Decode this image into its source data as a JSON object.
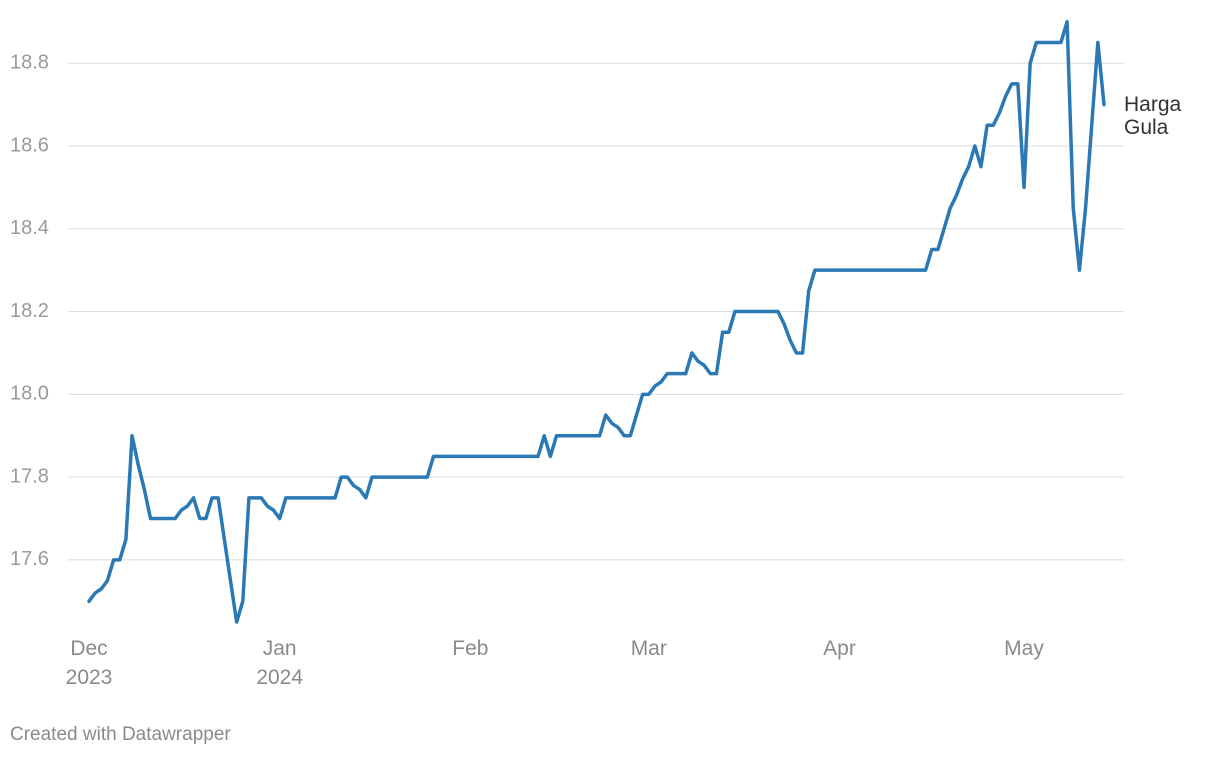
{
  "chart_data": {
    "type": "line",
    "categories": [
      "Dec\n2023",
      null,
      null,
      null,
      null,
      null,
      null,
      null,
      null,
      null,
      null,
      null,
      null,
      null,
      null,
      null,
      null,
      null,
      null,
      null,
      null,
      null,
      null,
      null,
      null,
      null,
      null,
      null,
      null,
      null,
      null,
      "Jan\n2024",
      null,
      null,
      null,
      null,
      null,
      null,
      null,
      null,
      null,
      null,
      null,
      null,
      null,
      null,
      null,
      null,
      null,
      null,
      null,
      null,
      null,
      null,
      null,
      null,
      null,
      null,
      null,
      null,
      null,
      null,
      "Feb",
      null,
      null,
      null,
      null,
      null,
      null,
      null,
      null,
      null,
      null,
      null,
      null,
      null,
      null,
      null,
      null,
      null,
      null,
      null,
      null,
      null,
      null,
      null,
      null,
      null,
      null,
      null,
      null,
      "Mar",
      null,
      null,
      null,
      null,
      null,
      null,
      null,
      null,
      null,
      null,
      null,
      null,
      null,
      null,
      null,
      null,
      null,
      null,
      null,
      null,
      null,
      null,
      null,
      null,
      null,
      null,
      null,
      null,
      null,
      null,
      "Apr",
      null,
      null,
      null,
      null,
      null,
      null,
      null,
      null,
      null,
      null,
      null,
      null,
      null,
      null,
      null,
      null,
      null,
      null,
      null,
      null,
      null,
      null,
      null,
      null,
      null,
      null,
      null,
      null,
      null,
      "May",
      null,
      null,
      null,
      null,
      null,
      null,
      null,
      null,
      null,
      null,
      null,
      null,
      null
    ],
    "series": [
      {
        "name": "Harga\nGula",
        "color": "#2a78b4",
        "values": [
          17.5,
          17.52,
          17.53,
          17.55,
          17.6,
          17.6,
          17.65,
          17.9,
          17.83,
          17.77,
          17.7,
          17.7,
          17.7,
          17.7,
          17.7,
          17.72,
          17.73,
          17.75,
          17.7,
          17.7,
          17.75,
          17.75,
          17.65,
          17.55,
          17.45,
          17.5,
          17.75,
          17.75,
          17.75,
          17.73,
          17.72,
          17.7,
          17.75,
          17.75,
          17.75,
          17.75,
          17.75,
          17.75,
          17.75,
          17.75,
          17.75,
          17.8,
          17.8,
          17.78,
          17.77,
          17.75,
          17.8,
          17.8,
          17.8,
          17.8,
          17.8,
          17.8,
          17.8,
          17.8,
          17.8,
          17.8,
          17.85,
          17.85,
          17.85,
          17.85,
          17.85,
          17.85,
          17.85,
          17.85,
          17.85,
          17.85,
          17.85,
          17.85,
          17.85,
          17.85,
          17.85,
          17.85,
          17.85,
          17.85,
          17.9,
          17.85,
          17.9,
          17.9,
          17.9,
          17.9,
          17.9,
          17.9,
          17.9,
          17.9,
          17.95,
          17.93,
          17.92,
          17.9,
          17.9,
          17.95,
          18.0,
          18.0,
          18.02,
          18.03,
          18.05,
          18.05,
          18.05,
          18.05,
          18.1,
          18.08,
          18.07,
          18.05,
          18.05,
          18.15,
          18.15,
          18.2,
          18.2,
          18.2,
          18.2,
          18.2,
          18.2,
          18.2,
          18.2,
          18.17,
          18.13,
          18.1,
          18.1,
          18.25,
          18.3,
          18.3,
          18.3,
          18.3,
          18.3,
          18.3,
          18.3,
          18.3,
          18.3,
          18.3,
          18.3,
          18.3,
          18.3,
          18.3,
          18.3,
          18.3,
          18.3,
          18.3,
          18.3,
          18.35,
          18.35,
          18.4,
          18.45,
          18.48,
          18.52,
          18.55,
          18.6,
          18.55,
          18.65,
          18.65,
          18.68,
          18.72,
          18.75,
          18.75,
          18.5,
          18.8,
          18.85,
          18.85,
          18.85,
          18.85,
          18.85,
          18.9,
          18.45,
          18.3,
          18.45,
          18.65,
          18.85,
          18.7
        ]
      }
    ],
    "ylim": [
      17.45,
      18.9
    ],
    "yticks": [
      17.6,
      17.8,
      {
        "value": 18,
        "label": "18.0"
      },
      18.2,
      18.4,
      18.6,
      18.8
    ],
    "grid": true,
    "footer": "Created with Datawrapper"
  }
}
